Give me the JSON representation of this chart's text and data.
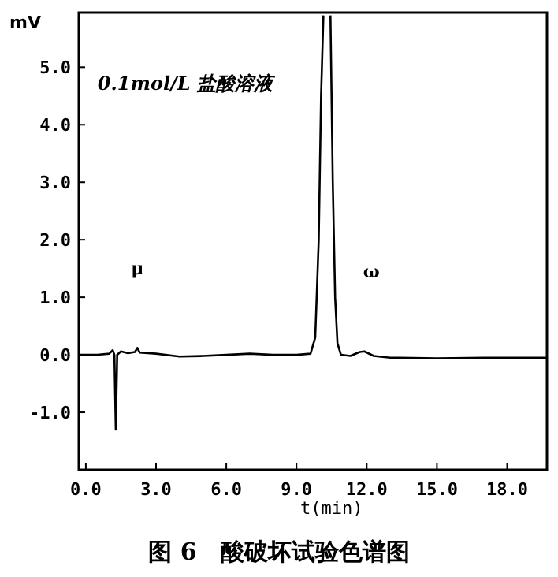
{
  "chart_data": {
    "type": "line",
    "title": "图 6　酸破坏试验色谱图",
    "xlabel": "t(min)",
    "ylabel": "mV",
    "annotations": [
      "0.1mol/L 盐酸溶液",
      "μ",
      "ω"
    ],
    "xlim": [
      -0.3,
      19.7
    ],
    "ylim": [
      -2.0,
      5.95
    ],
    "xticks": [
      {
        "value": 0,
        "label": "0.0"
      },
      {
        "value": 3,
        "label": "3.0"
      },
      {
        "value": 6,
        "label": "6.0"
      },
      {
        "value": 9,
        "label": "9.0"
      },
      {
        "value": 12,
        "label": "12.0"
      },
      {
        "value": 15,
        "label": "15.0"
      },
      {
        "value": 18,
        "label": "18.0"
      }
    ],
    "yticks": [
      {
        "value": -1,
        "label": "-1.0"
      },
      {
        "value": 0,
        "label": "0.0"
      },
      {
        "value": 1,
        "label": "1.0"
      },
      {
        "value": 2,
        "label": "2.0"
      },
      {
        "value": 3,
        "label": "3.0"
      },
      {
        "value": 4,
        "label": "4.0"
      },
      {
        "value": 5,
        "label": "5.0"
      }
    ],
    "grid": false,
    "marker": "none",
    "line_style": "solid",
    "series": [
      {
        "color": "#000000",
        "x": [
          -0.3,
          0.5,
          1.0,
          1.15,
          1.22,
          1.28,
          1.34,
          1.5,
          1.8,
          2.1,
          2.2,
          2.3,
          3.0,
          4.0,
          5.0,
          6.0,
          7.0,
          8.0,
          9.0,
          9.6,
          9.8,
          9.95,
          10.05,
          10.15,
          10.3,
          10.45,
          10.55,
          10.65,
          10.75,
          10.9,
          11.3,
          11.7,
          11.9,
          12.3,
          13.0,
          15.0,
          17.0,
          19.7
        ],
        "values": [
          0.0,
          0.0,
          0.02,
          0.08,
          0.0,
          -1.3,
          0.0,
          0.06,
          0.03,
          0.05,
          0.12,
          0.04,
          0.02,
          -0.03,
          -0.02,
          0.0,
          0.02,
          0.0,
          0.0,
          0.02,
          0.3,
          2.0,
          4.5,
          5.9,
          null,
          5.9,
          3.0,
          1.0,
          0.2,
          0.0,
          -0.02,
          0.05,
          0.06,
          -0.02,
          -0.05,
          -0.06,
          -0.05,
          -0.05
        ]
      }
    ]
  }
}
